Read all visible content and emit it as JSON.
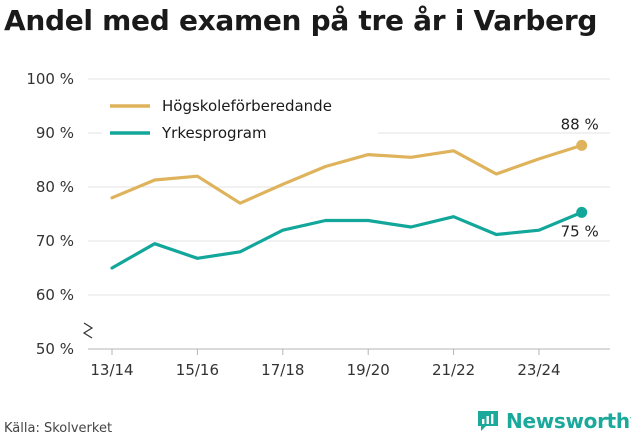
{
  "title": "Andel med examen på tre år i Varberg",
  "source": "Källa: Skolverket",
  "brand": "Newsworthy",
  "chart_data": {
    "type": "line",
    "title": "Andel med examen på tre år i Varberg",
    "xlabel": "",
    "ylabel": "",
    "ylim": [
      50,
      100
    ],
    "y_ticks": [
      50,
      60,
      70,
      80,
      90,
      100
    ],
    "y_tick_labels": [
      "50 %",
      "60 %",
      "70 %",
      "80 %",
      "90 %",
      "100 %"
    ],
    "y_axis_break": true,
    "x": [
      "13/14",
      "14/15",
      "15/16",
      "16/17",
      "17/18",
      "18/19",
      "19/20",
      "20/21",
      "21/22",
      "22/23",
      "23/24",
      "24/25"
    ],
    "x_tick_labels": [
      "13/14",
      "15/16",
      "17/18",
      "19/20",
      "21/22",
      "23/24"
    ],
    "grid": true,
    "legend": "top-left",
    "series": [
      {
        "name": "Högskoleförberedande",
        "color": "#dfb35b",
        "values": [
          78,
          81.3,
          82,
          77,
          80.5,
          83.8,
          86,
          85.5,
          86.7,
          82.4,
          85.2,
          87.7
        ],
        "end_label": "88 %"
      },
      {
        "name": "Yrkesprogram",
        "color": "#13a69a",
        "values": [
          65,
          69.5,
          66.8,
          68,
          72,
          73.8,
          73.8,
          72.6,
          74.5,
          71.2,
          72,
          75.3
        ],
        "end_label": "75 %"
      }
    ]
  }
}
